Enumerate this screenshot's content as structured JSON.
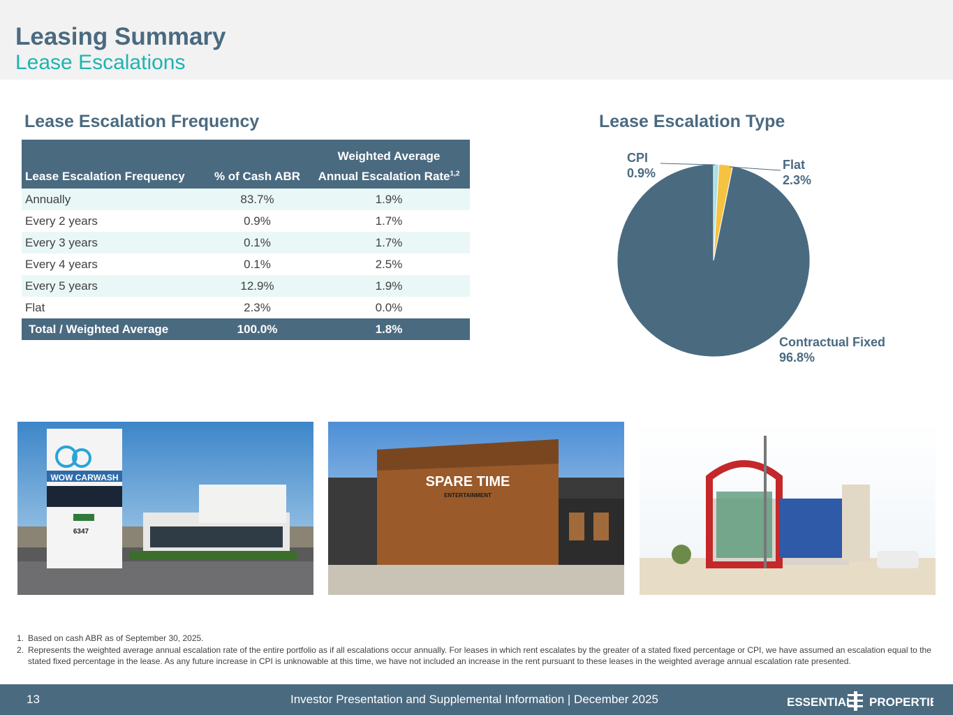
{
  "header": {
    "title": "Leasing Summary",
    "subtitle": "Lease Escalations"
  },
  "frequency": {
    "section_title": "Lease Escalation Frequency",
    "table": {
      "header_top": "Weighted Average",
      "col_freq": "Lease Escalation Frequency",
      "col_pct": "% of Cash ABR",
      "col_rate": "Annual Escalation Rate",
      "col_rate_sup": "1,2",
      "rows": [
        {
          "label": "Annually",
          "pct": "83.7%",
          "rate": "1.9%"
        },
        {
          "label": "Every 2 years",
          "pct": "0.9%",
          "rate": "1.7%"
        },
        {
          "label": "Every 3 years",
          "pct": "0.1%",
          "rate": "1.7%"
        },
        {
          "label": "Every 4 years",
          "pct": "0.1%",
          "rate": "2.5%"
        },
        {
          "label": "Every 5 years",
          "pct": "12.9%",
          "rate": "1.9%"
        },
        {
          "label": "Flat",
          "pct": "2.3%",
          "rate": "0.0%"
        }
      ],
      "total": {
        "label": "Total / Weighted Average",
        "pct": "100.0%",
        "rate": "1.8%"
      }
    }
  },
  "type": {
    "section_title": "Lease Escalation Type",
    "labels": {
      "cpi_name": "CPI",
      "cpi_value": "0.9%",
      "flat_name": "Flat",
      "flat_value": "2.3%",
      "fixed_name": "Contractual Fixed",
      "fixed_value": "96.8%"
    }
  },
  "chart_data": {
    "type": "pie",
    "title": "Lease Escalation Type",
    "slices": [
      {
        "name": "CPI",
        "value": 0.9,
        "color": "#a8e0e6"
      },
      {
        "name": "Flat",
        "value": 2.3,
        "color": "#f5c242"
      },
      {
        "name": "Contractual Fixed",
        "value": 96.8,
        "color": "#4a6a80"
      }
    ],
    "legend": "none"
  },
  "photos": {
    "photo1_sign": "WOW CARWASH",
    "photo1_address": "6347",
    "photo2_sign": "SPARE TIME",
    "photo2_sub": "ENTERTAINMENT"
  },
  "footnotes": {
    "n1": "1.",
    "t1": "Based on cash ABR as of September 30, 2025.",
    "n2": "2.",
    "t2": "Represents the weighted average annual escalation rate of the entire portfolio as if all escalations occur annually. For leases in which rent escalates by the greater of a stated fixed percentage or CPI, we have assumed an escalation equal to the stated fixed percentage in the lease. As any future increase in CPI is unknowable at this time, we have not included an increase in the rent pursuant to these leases in the weighted average annual escalation rate presented."
  },
  "footer": {
    "page": "13",
    "text": "Investor Presentation and Supplemental Information |  December 2025",
    "logo_left": "ESSENTIAL",
    "logo_right": "PROPERTIES"
  },
  "colors": {
    "brand": "#4a6a80",
    "accent": "#1fb3b0",
    "row_alt": "#eaf7f7"
  }
}
